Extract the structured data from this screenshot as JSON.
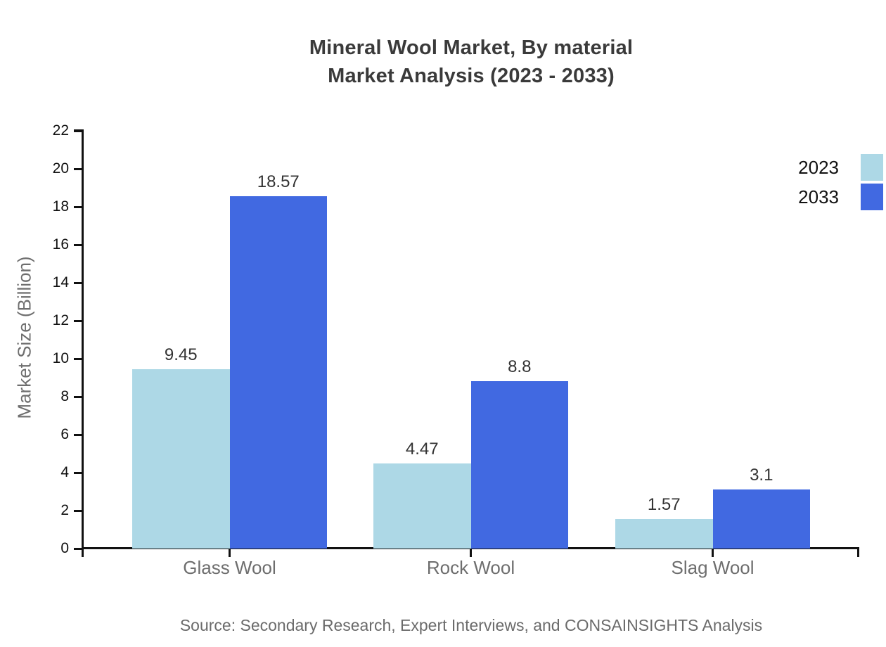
{
  "title": {
    "line1": "Mineral Wool Market, By material",
    "line2": "Market Analysis (2023 - 2033)"
  },
  "chart_data": {
    "type": "bar",
    "categories": [
      "Glass Wool",
      "Rock Wool",
      "Slag Wool"
    ],
    "series": [
      {
        "name": "2023",
        "color": "#add8e6",
        "values": [
          9.45,
          4.47,
          1.57
        ],
        "labels": [
          "9.45",
          "4.47",
          "1.57"
        ]
      },
      {
        "name": "2033",
        "color": "#4169e1",
        "values": [
          18.57,
          8.8,
          3.1
        ],
        "labels": [
          "18.57",
          "8.8",
          "3.1"
        ]
      }
    ],
    "title": "Mineral Wool Market, By material Market Analysis (2023 - 2033)",
    "xlabel": "",
    "ylabel": "Market Size (Billion)",
    "ylim": [
      0,
      22
    ],
    "ytick_step": 2,
    "grid": false,
    "legend_position": "top-right"
  },
  "source": "Source: Secondary Research, Expert Interviews, and CONSAINSIGHTS Analysis"
}
